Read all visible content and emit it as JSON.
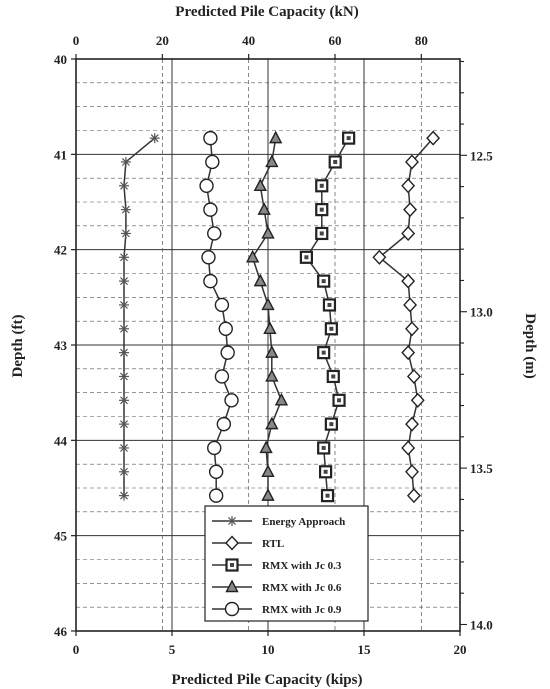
{
  "chart_data": {
    "type": "line",
    "title": "",
    "xlabel": "Predicted Pile Capacity (kips)",
    "x2label": "Predicted Pile Capacity (kN)",
    "ylabel": "Depth (ft)",
    "y2label": "Depth (m)",
    "xlim": [
      0,
      20
    ],
    "ylim": [
      46,
      40
    ],
    "x2lim": [
      0,
      88.96
    ],
    "y2lim": [
      14.021,
      12.192
    ],
    "x_ticks": [
      "0",
      "5",
      "10",
      "15",
      "20"
    ],
    "x2_ticks": [
      "0",
      "20",
      "40",
      "60",
      "80"
    ],
    "y_ticks": [
      "40",
      "41",
      "42",
      "43",
      "44",
      "45",
      "46"
    ],
    "y2_ticks": [
      "12.5",
      "13.0",
      "13.5",
      "14.0"
    ],
    "grid": true,
    "legend_position": "bottom-center",
    "series": [
      {
        "name": "Energy Approach",
        "marker": "asterisk",
        "points": [
          [
            4.1,
            40.83
          ],
          [
            2.6,
            41.08
          ],
          [
            2.5,
            41.33
          ],
          [
            2.6,
            41.58
          ],
          [
            2.6,
            41.83
          ],
          [
            2.5,
            42.08
          ],
          [
            2.5,
            42.33
          ],
          [
            2.5,
            42.58
          ],
          [
            2.5,
            42.83
          ],
          [
            2.5,
            43.08
          ],
          [
            2.5,
            43.33
          ],
          [
            2.5,
            43.58
          ],
          [
            2.5,
            43.83
          ],
          [
            2.5,
            44.08
          ],
          [
            2.5,
            44.33
          ],
          [
            2.5,
            44.58
          ]
        ]
      },
      {
        "name": "RTL",
        "marker": "diamond",
        "points": [
          [
            18.6,
            40.83
          ],
          [
            17.5,
            41.08
          ],
          [
            17.3,
            41.33
          ],
          [
            17.4,
            41.58
          ],
          [
            17.3,
            41.83
          ],
          [
            15.8,
            42.08
          ],
          [
            17.3,
            42.33
          ],
          [
            17.4,
            42.58
          ],
          [
            17.5,
            42.83
          ],
          [
            17.3,
            43.08
          ],
          [
            17.6,
            43.33
          ],
          [
            17.8,
            43.58
          ],
          [
            17.5,
            43.83
          ],
          [
            17.3,
            44.08
          ],
          [
            17.5,
            44.33
          ],
          [
            17.6,
            44.58
          ]
        ]
      },
      {
        "name": "RMX with Jc 0.3",
        "marker": "square",
        "points": [
          [
            14.2,
            40.83
          ],
          [
            13.5,
            41.08
          ],
          [
            12.8,
            41.33
          ],
          [
            12.8,
            41.58
          ],
          [
            12.8,
            41.83
          ],
          [
            12.0,
            42.08
          ],
          [
            12.9,
            42.33
          ],
          [
            13.2,
            42.58
          ],
          [
            13.3,
            42.83
          ],
          [
            12.9,
            43.08
          ],
          [
            13.4,
            43.33
          ],
          [
            13.7,
            43.58
          ],
          [
            13.3,
            43.83
          ],
          [
            12.9,
            44.08
          ],
          [
            13.0,
            44.33
          ],
          [
            13.1,
            44.58
          ]
        ]
      },
      {
        "name": "RMX with Jc 0.6",
        "marker": "triangle",
        "points": [
          [
            10.4,
            40.83
          ],
          [
            10.2,
            41.08
          ],
          [
            9.6,
            41.33
          ],
          [
            9.8,
            41.58
          ],
          [
            10.0,
            41.83
          ],
          [
            9.2,
            42.08
          ],
          [
            9.6,
            42.33
          ],
          [
            10.0,
            42.58
          ],
          [
            10.1,
            42.83
          ],
          [
            10.2,
            43.08
          ],
          [
            10.2,
            43.33
          ],
          [
            10.7,
            43.58
          ],
          [
            10.2,
            43.83
          ],
          [
            9.9,
            44.08
          ],
          [
            10.0,
            44.33
          ],
          [
            10.0,
            44.58
          ]
        ]
      },
      {
        "name": "RMX with Jc 0.9",
        "marker": "circle",
        "points": [
          [
            7.0,
            40.83
          ],
          [
            7.1,
            41.08
          ],
          [
            6.8,
            41.33
          ],
          [
            7.0,
            41.58
          ],
          [
            7.2,
            41.83
          ],
          [
            6.9,
            42.08
          ],
          [
            7.0,
            42.33
          ],
          [
            7.6,
            42.58
          ],
          [
            7.8,
            42.83
          ],
          [
            7.9,
            43.08
          ],
          [
            7.6,
            43.33
          ],
          [
            8.1,
            43.58
          ],
          [
            7.7,
            43.83
          ],
          [
            7.2,
            44.08
          ],
          [
            7.3,
            44.33
          ],
          [
            7.3,
            44.58
          ]
        ]
      }
    ]
  }
}
